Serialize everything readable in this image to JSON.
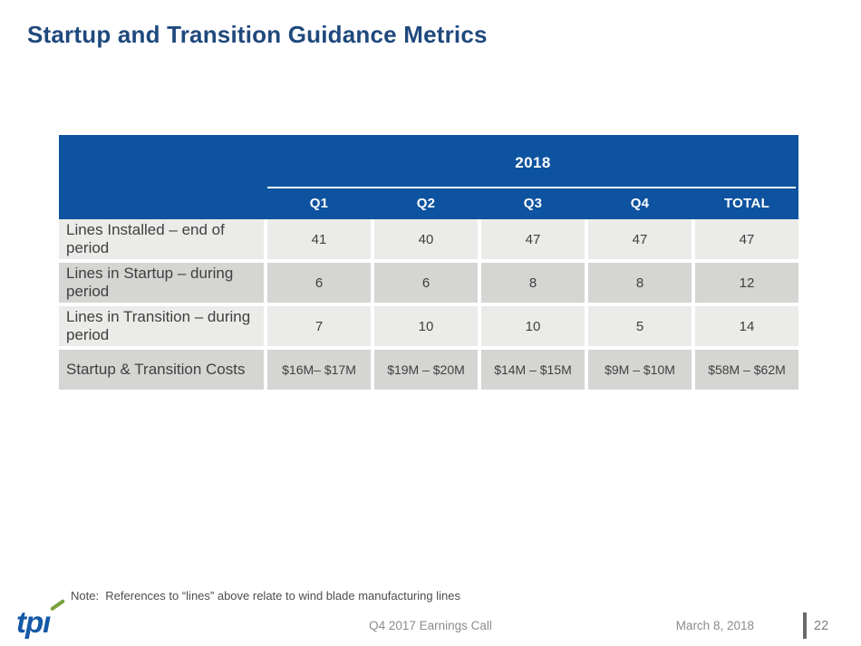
{
  "slide": {
    "title": "Startup and Transition Guidance Metrics",
    "note": "Note:  References to “lines” above relate to wind blade manufacturing lines",
    "footer": {
      "logo_text": "tpi",
      "event": "Q4 2017 Earnings Call",
      "date": "March 8, 2018",
      "page_number": "22"
    }
  },
  "table": {
    "year_header": "2018",
    "columns": [
      "Q1",
      "Q2",
      "Q3",
      "Q4",
      "TOTAL"
    ],
    "rows": [
      {
        "label": "Lines Installed – end of period",
        "values": [
          "41",
          "40",
          "47",
          "47",
          "47"
        ]
      },
      {
        "label": "Lines in Startup – during period",
        "values": [
          "6",
          "6",
          "8",
          "8",
          "12"
        ]
      },
      {
        "label": "Lines in Transition – during period",
        "values": [
          "7",
          "10",
          "10",
          "5",
          "14"
        ]
      },
      {
        "label": "Startup & Transition Costs",
        "values": [
          "$16M– $17M",
          "$19M – $20M",
          "$14M – $15M",
          "$9M – $10M",
          "$58M – $62M"
        ]
      }
    ]
  },
  "colors": {
    "title_navy": "#1F497D",
    "header_blue": "#0E539F",
    "row_light": "#EBEBE9",
    "row_dark": "#D5D5D3",
    "cell_text": "#404040",
    "note_gray": "#4D4D4D",
    "footer_gray": "#8C8C8C",
    "logo_blue": "#1459A6",
    "logo_green": "#79A23E",
    "page_bar_gray": "#696969"
  }
}
